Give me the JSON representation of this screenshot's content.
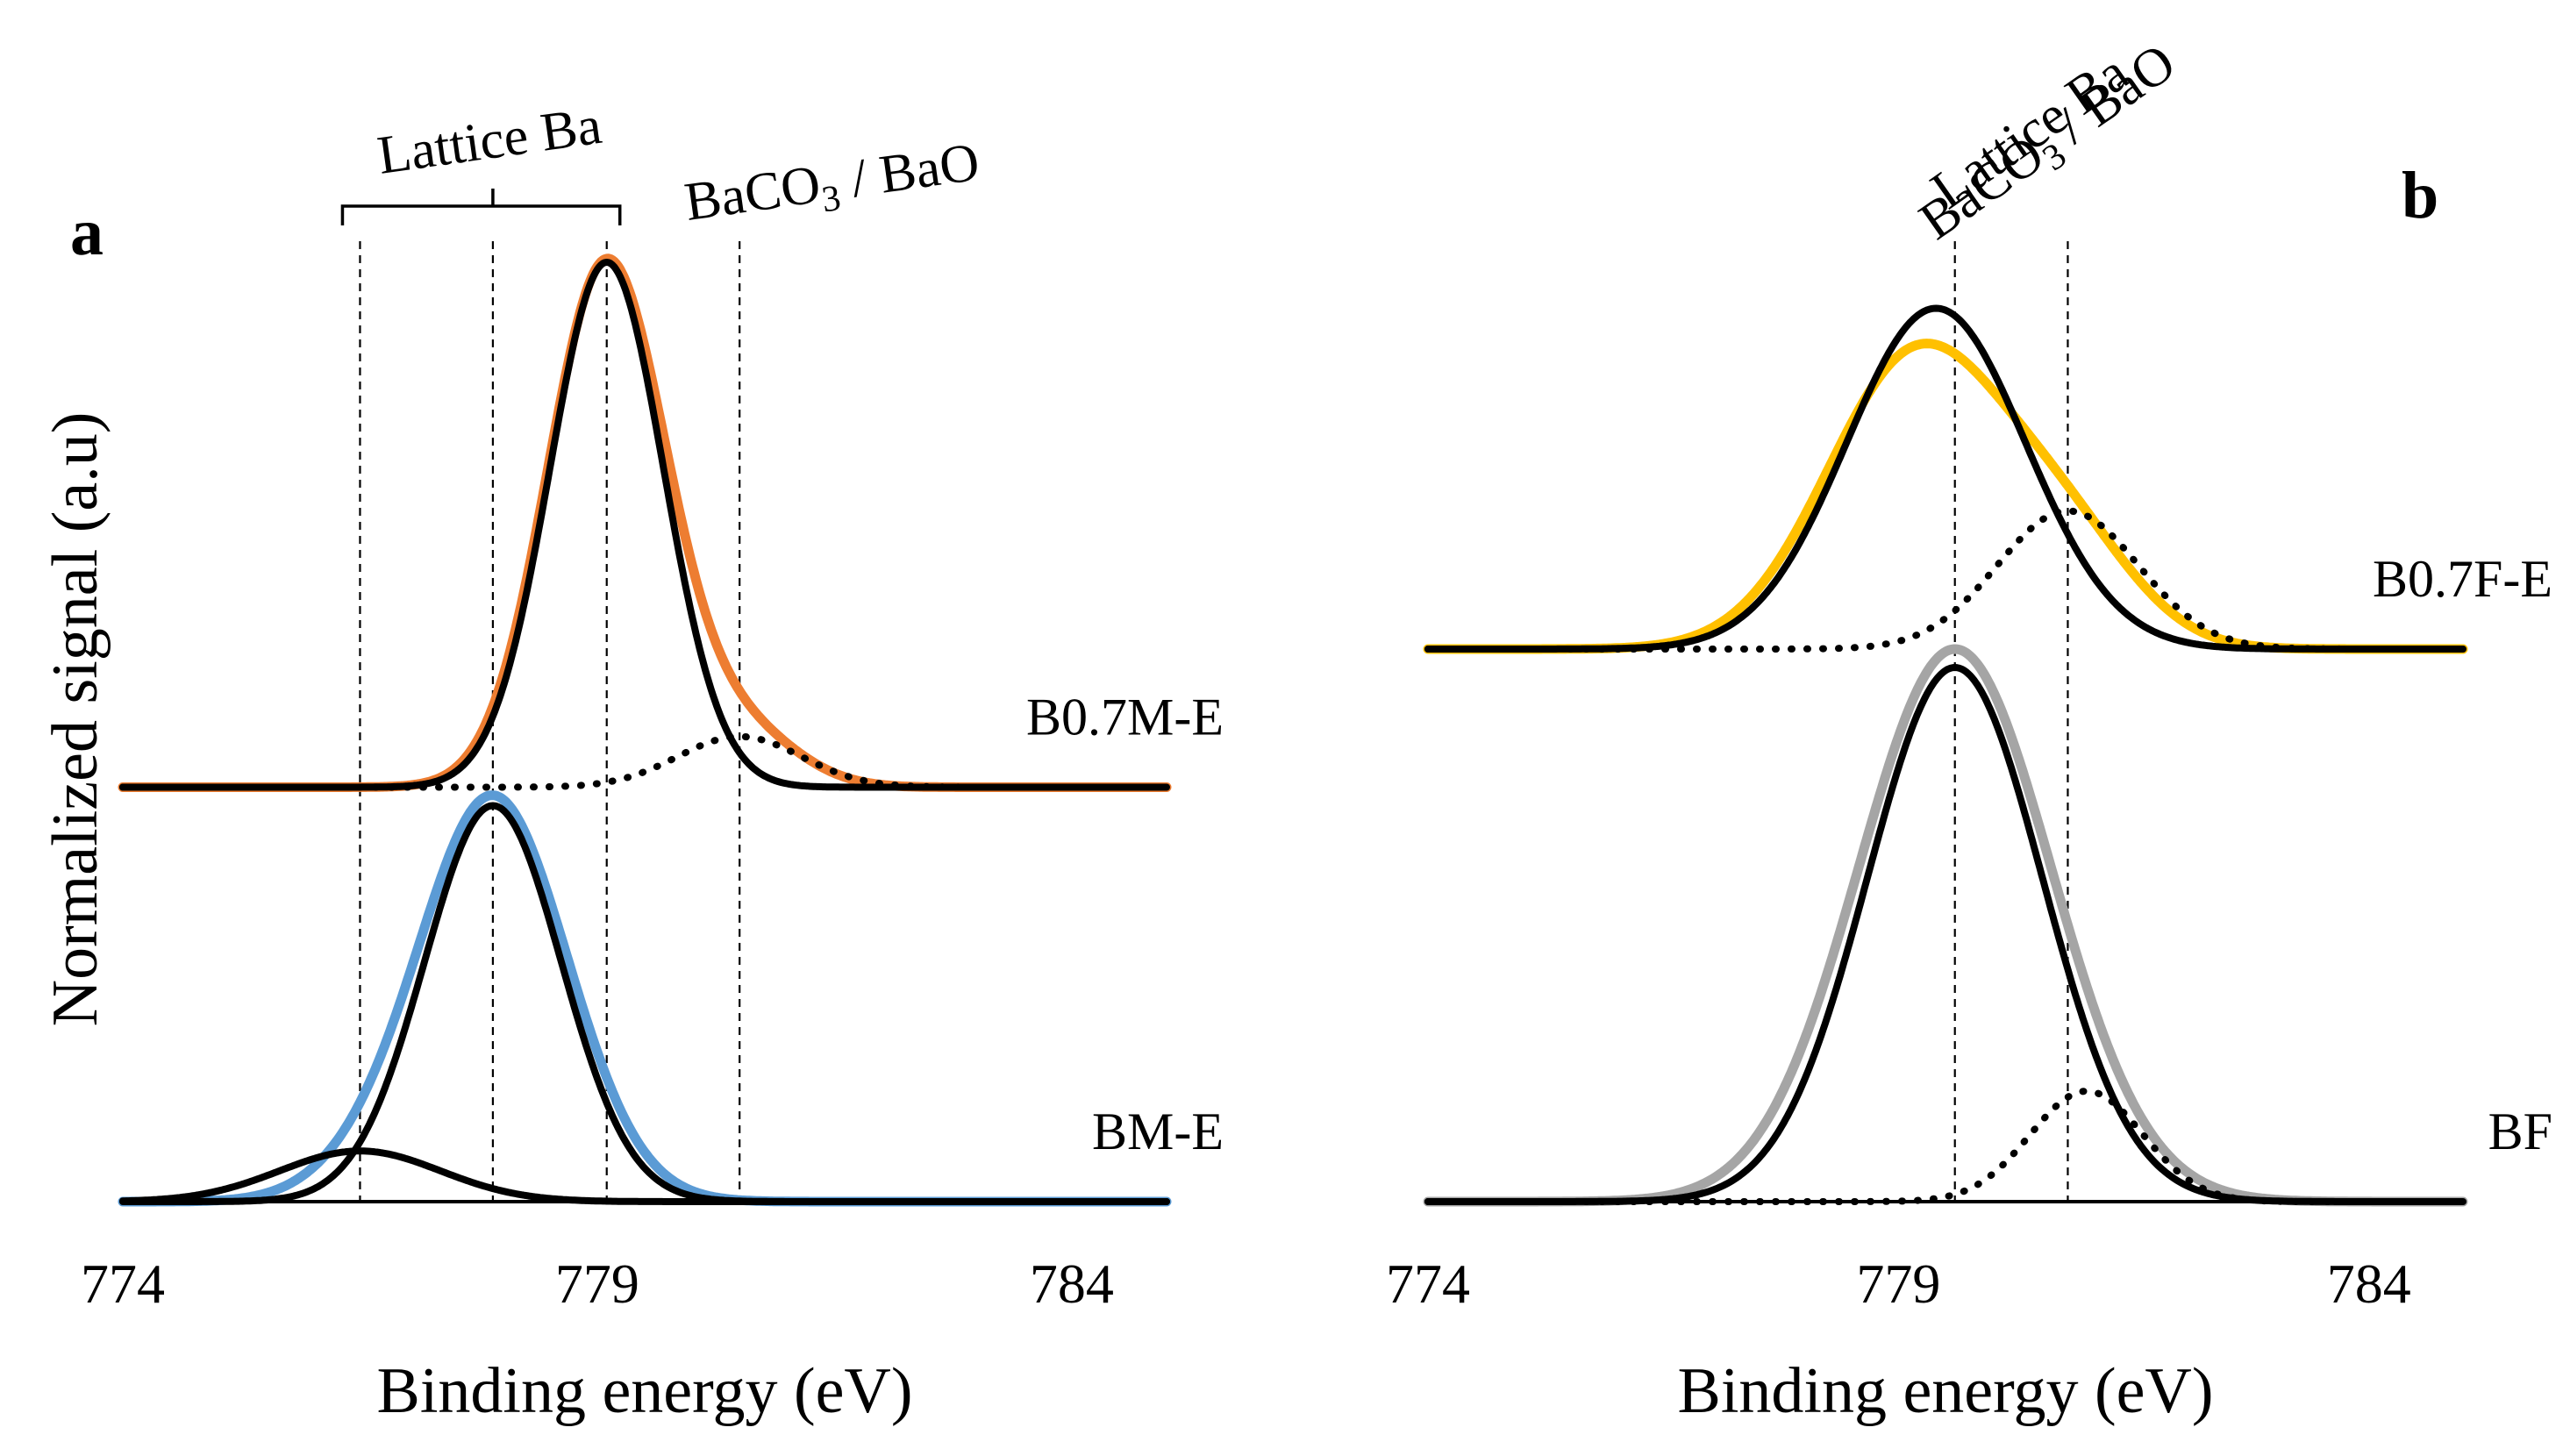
{
  "figure": {
    "ylabel": "Normalized signal (a.u)"
  },
  "chart_data": [
    {
      "panel": "a",
      "type": "line",
      "xlabel": "Binding energy (eV)",
      "ylabel": "Normalized signal (a.u)",
      "xlim": [
        774,
        785
      ],
      "xticks": [
        "774",
        "779",
        "784"
      ],
      "ylim": [
        0,
        1.0
      ],
      "annotations": [
        {
          "text": "Lattice Ba",
          "kind": "bracket",
          "x_range": [
            776.5,
            779.1
          ]
        },
        {
          "text": "BaCO",
          "sub": "3",
          "tail": " / BaO",
          "x": 780.5
        }
      ],
      "reference_lines_x": [
        776.5,
        777.9,
        779.1,
        780.5
      ],
      "series": [
        {
          "name": "B0.7M-E",
          "role": "envelope",
          "color": "#ED7D31",
          "offset": 0.45,
          "peaks": [
            {
              "center": 779.1,
              "height": 0.57,
              "sigma": 0.62
            },
            {
              "center": 780.5,
              "height": 0.06,
              "sigma": 0.6
            }
          ]
        },
        {
          "name": "B0.7M-E lattice component",
          "role": "component",
          "color": "#000000",
          "offset": 0.45,
          "peaks": [
            {
              "center": 779.1,
              "height": 0.57,
              "sigma": 0.6
            }
          ]
        },
        {
          "name": "B0.7M-E BaCO3/BaO component",
          "role": "component-dotted",
          "color": "#000000",
          "offset": 0.45,
          "peaks": [
            {
              "center": 780.5,
              "height": 0.055,
              "sigma": 0.65
            }
          ]
        },
        {
          "name": "BM-E",
          "role": "envelope",
          "color": "#5B9BD5",
          "offset": 0.0,
          "peaks": [
            {
              "center": 777.9,
              "height": 0.44,
              "sigma": 0.78
            },
            {
              "center": 776.5,
              "height": 0.02,
              "sigma": 0.6
            }
          ]
        },
        {
          "name": "BM-E lattice component",
          "role": "component",
          "color": "#000000",
          "offset": 0.0,
          "peaks": [
            {
              "center": 777.9,
              "height": 0.43,
              "sigma": 0.72
            }
          ]
        },
        {
          "name": "BM-E minor component",
          "role": "component",
          "color": "#000000",
          "offset": 0.0,
          "peaks": [
            {
              "center": 776.5,
              "height": 0.055,
              "sigma": 0.85
            }
          ]
        }
      ],
      "series_labels": [
        {
          "text": "B0.7M-E",
          "series": "B0.7M-E"
        },
        {
          "text": "BM-E",
          "series": "BM-E"
        }
      ]
    },
    {
      "panel": "b",
      "type": "line",
      "xlabel": "Binding energy (eV)",
      "xlim": [
        774,
        785
      ],
      "xticks": [
        "774",
        "779",
        "784"
      ],
      "ylim": [
        0,
        1.0
      ],
      "annotations": [
        {
          "text": "Lattice Ba",
          "x": 779.6
        },
        {
          "text": "BaCO",
          "sub": "3",
          "tail": " / BaO",
          "x": 780.8
        }
      ],
      "reference_lines_x": [
        779.6,
        780.8
      ],
      "series": [
        {
          "name": "B0.7F-E",
          "role": "envelope",
          "color": "#FFC000",
          "offset": 0.6,
          "peaks": [
            {
              "center": 779.2,
              "height": 0.32,
              "sigma": 0.95
            },
            {
              "center": 780.8,
              "height": 0.1,
              "sigma": 0.75
            }
          ]
        },
        {
          "name": "B0.7F-E lattice component",
          "role": "component",
          "color": "#000000",
          "offset": 0.6,
          "peaks": [
            {
              "center": 779.4,
              "height": 0.37,
              "sigma": 0.95
            }
          ]
        },
        {
          "name": "B0.7F-E BaCO3/BaO component",
          "role": "component-dotted",
          "color": "#000000",
          "offset": 0.6,
          "peaks": [
            {
              "center": 780.8,
              "height": 0.15,
              "sigma": 0.75
            }
          ]
        },
        {
          "name": "BF",
          "role": "envelope",
          "color": "#A5A5A5",
          "offset": 0.0,
          "peaks": [
            {
              "center": 779.6,
              "height": 0.6,
              "sigma": 1.02
            }
          ]
        },
        {
          "name": "BF lattice component",
          "role": "component",
          "color": "#000000",
          "offset": 0.0,
          "peaks": [
            {
              "center": 779.6,
              "height": 0.58,
              "sigma": 0.93
            }
          ]
        },
        {
          "name": "BF BaCO3/BaO component",
          "role": "component-dotted",
          "color": "#000000",
          "offset": 0.0,
          "peaks": [
            {
              "center": 781.0,
              "height": 0.12,
              "sigma": 0.6
            }
          ]
        }
      ],
      "series_labels": [
        {
          "text": "B0.7F-E",
          "series": "B0.7F-E"
        },
        {
          "text": "BF",
          "series": "BF"
        }
      ]
    }
  ]
}
